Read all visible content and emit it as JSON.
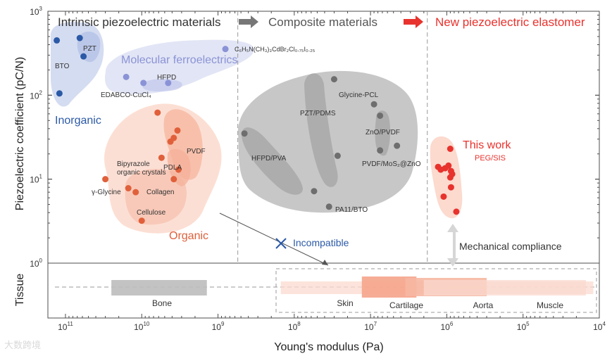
{
  "chart_data": {
    "type": "scatter",
    "title": "",
    "xlabel": "Young's modulus (Pa)",
    "ylabel": "Piezoelectric coefficient (pC/N)",
    "x_scale": "log-reversed",
    "y_scale": "log",
    "xlim": [
      170000000000.0,
      10000.0
    ],
    "ylim": [
      1,
      1000
    ],
    "x_ticks": [
      {
        "value": 100000000000.0,
        "base": "10",
        "exp": "11"
      },
      {
        "value": 10000000000.0,
        "base": "10",
        "exp": "10"
      },
      {
        "value": 1000000000.0,
        "base": "10",
        "exp": "9"
      },
      {
        "value": 100000000.0,
        "base": "10",
        "exp": "8"
      },
      {
        "value": 10000000.0,
        "base": "10",
        "exp": "7"
      },
      {
        "value": 1000000.0,
        "base": "10",
        "exp": "6"
      },
      {
        "value": 100000.0,
        "base": "10",
        "exp": "5"
      },
      {
        "value": 10000.0,
        "base": "10",
        "exp": "4"
      }
    ],
    "y_ticks": [
      {
        "value": 1,
        "base": "10",
        "exp": "0"
      },
      {
        "value": 10,
        "base": "10",
        "exp": "1"
      },
      {
        "value": 100,
        "base": "10",
        "exp": "2"
      },
      {
        "value": 1000,
        "base": "10",
        "exp": "3"
      }
    ],
    "region_dividers_x": [
      550000000.0,
      1800000.0
    ],
    "headings": [
      {
        "text": "Intrinsic piezoelectric materials",
        "color": "#222222"
      },
      {
        "text": "Composite materials",
        "color": "#555555"
      },
      {
        "text": "New piezoelectric elastomer",
        "color": "#e8322d"
      }
    ],
    "arrow_colors": [
      "#777777",
      "#e8322d"
    ],
    "groups": [
      {
        "name": "Inorganic",
        "color": "#2b59a6",
        "fill": "#cdd6ee"
      },
      {
        "name": "Molecular ferroelectrics",
        "color": "#8a93d6",
        "fill": "#dde1f3"
      },
      {
        "name": "Organic",
        "color": "#e0603b",
        "fill": "#fbd9cc"
      },
      {
        "name": "Composite",
        "color": "#6e6e6e",
        "fill": "#b7b7b7"
      },
      {
        "name": "This work",
        "color": "#e8322d",
        "fill": "#fbd3c6"
      }
    ],
    "points": [
      {
        "x": 130000000000.0,
        "y": 450,
        "group": "Inorganic"
      },
      {
        "x": 120000000000.0,
        "y": 105,
        "group": "Inorganic"
      },
      {
        "x": 65000000000.0,
        "y": 480,
        "group": "Inorganic"
      },
      {
        "x": 58000000000.0,
        "y": 290,
        "group": "Inorganic"
      },
      {
        "x": 800000000.0,
        "y": 355,
        "group": "Molecular ferroelectrics"
      },
      {
        "x": 16000000000.0,
        "y": 165,
        "group": "Molecular ferroelectrics"
      },
      {
        "x": 9500000000.0,
        "y": 140,
        "group": "Molecular ferroelectrics"
      },
      {
        "x": 4500000000.0,
        "y": 140,
        "group": "Molecular ferroelectrics"
      },
      {
        "x": 6200000000.0,
        "y": 62,
        "group": "Organic"
      },
      {
        "x": 3400000000.0,
        "y": 38,
        "group": "Organic"
      },
      {
        "x": 3800000000.0,
        "y": 31,
        "group": "Organic"
      },
      {
        "x": 4200000000.0,
        "y": 28,
        "group": "Organic"
      },
      {
        "x": 3300000000.0,
        "y": 13,
        "group": "Organic"
      },
      {
        "x": 5500000000.0,
        "y": 18,
        "group": "Organic"
      },
      {
        "x": 3800000000.0,
        "y": 10,
        "group": "Organic"
      },
      {
        "x": 30000000000.0,
        "y": 10,
        "group": "Organic"
      },
      {
        "x": 15000000000.0,
        "y": 7.8,
        "group": "Organic"
      },
      {
        "x": 12000000000.0,
        "y": 7.0,
        "group": "Organic"
      },
      {
        "x": 10000000000.0,
        "y": 3.2,
        "group": "Organic"
      },
      {
        "x": 450000000.0,
        "y": 35,
        "group": "Composite"
      },
      {
        "x": 30000000.0,
        "y": 155,
        "group": "Composite"
      },
      {
        "x": 9000000.0,
        "y": 78,
        "group": "Composite"
      },
      {
        "x": 7500000.0,
        "y": 57,
        "group": "Composite"
      },
      {
        "x": 7500000.0,
        "y": 22,
        "group": "Composite"
      },
      {
        "x": 4500000.0,
        "y": 25,
        "group": "Composite"
      },
      {
        "x": 27000000.0,
        "y": 19,
        "group": "Composite"
      },
      {
        "x": 55000000.0,
        "y": 7.2,
        "group": "Composite"
      },
      {
        "x": 35000000.0,
        "y": 4.7,
        "group": "Composite"
      },
      {
        "x": 900000.0,
        "y": 23,
        "group": "This work"
      },
      {
        "x": 1300000.0,
        "y": 14,
        "group": "This work"
      },
      {
        "x": 1200000.0,
        "y": 13,
        "group": "This work"
      },
      {
        "x": 1050000.0,
        "y": 13.5,
        "group": "This work"
      },
      {
        "x": 950000.0,
        "y": 14.5,
        "group": "This work"
      },
      {
        "x": 880000.0,
        "y": 12.5,
        "group": "This work"
      },
      {
        "x": 850000.0,
        "y": 11.5,
        "group": "This work"
      },
      {
        "x": 900000.0,
        "y": 10.5,
        "group": "This work"
      },
      {
        "x": 880000.0,
        "y": 8.0,
        "group": "This work"
      },
      {
        "x": 1100000.0,
        "y": 6.2,
        "group": "This work"
      },
      {
        "x": 750000.0,
        "y": 4.1,
        "group": "This work"
      }
    ],
    "point_labels": [
      {
        "text": "BTO",
        "group": "Inorganic"
      },
      {
        "text": "PZT",
        "group": "Inorganic"
      },
      {
        "text": "Inorganic",
        "group": "Inorganic"
      },
      {
        "text": "Molecular ferroelectrics",
        "group": "Molecular ferroelectrics"
      },
      {
        "text": "HFPD",
        "group": "Molecular ferroelectrics"
      },
      {
        "text": "EDABCO-CuCl₄",
        "group": "Molecular ferroelectrics"
      },
      {
        "text": "C₆H₅N(CH₃)₃CdBr₂Cl₀.₇₅I₀.₂₅",
        "group": "Molecular ferroelectrics"
      },
      {
        "text": "PVDF",
        "group": "Organic"
      },
      {
        "text": "PDLA",
        "group": "Organic"
      },
      {
        "text": "Bipyrazole",
        "group": "Organic"
      },
      {
        "text": "organic crystals",
        "group": "Organic"
      },
      {
        "text": "Collagen",
        "group": "Organic"
      },
      {
        "text": "γ-Glycine",
        "group": "Organic"
      },
      {
        "text": "Cellulose",
        "group": "Organic"
      },
      {
        "text": "Organic",
        "group": "Organic"
      },
      {
        "text": "PZT/PDMS",
        "group": "Composite"
      },
      {
        "text": "Glycine-PCL",
        "group": "Composite"
      },
      {
        "text": "ZnO/PVDF",
        "group": "Composite"
      },
      {
        "text": "HFPD/PVA",
        "group": "Composite"
      },
      {
        "text": "PVDF/MoS₂@ZnO",
        "group": "Composite"
      },
      {
        "text": "PA11/BTO",
        "group": "Composite"
      },
      {
        "text": "This work",
        "group": "This work"
      },
      {
        "text": "PEG/SIS",
        "group": "This work"
      }
    ],
    "annotations": [
      {
        "text": "Incompatible",
        "color": "#2b59a6"
      },
      {
        "text": "Mechanical compliance",
        "color": "#222222"
      }
    ],
    "tissue_label": "Tissue",
    "tissues": [
      {
        "name": "Bone",
        "x_min": 25000000000.0,
        "x_max": 1400000000.0,
        "color": "#bdbdbd"
      },
      {
        "name": "Skin",
        "x_min": 150000000.0,
        "x_max": 12000.0,
        "color": "#fbd9cf"
      },
      {
        "name": "Cartilage",
        "x_min": 13000000.0,
        "x_max": 2500000.0,
        "color": "#f5a48a"
      },
      {
        "name": "Aorta",
        "x_min": 3500000.0,
        "x_max": 300000.0,
        "color": "#f6b7a2"
      },
      {
        "name": "Muscle",
        "x_min": 2000000.0,
        "x_max": 15000.0,
        "color": "#fbd9cf"
      }
    ]
  },
  "watermark": "大数跨境"
}
